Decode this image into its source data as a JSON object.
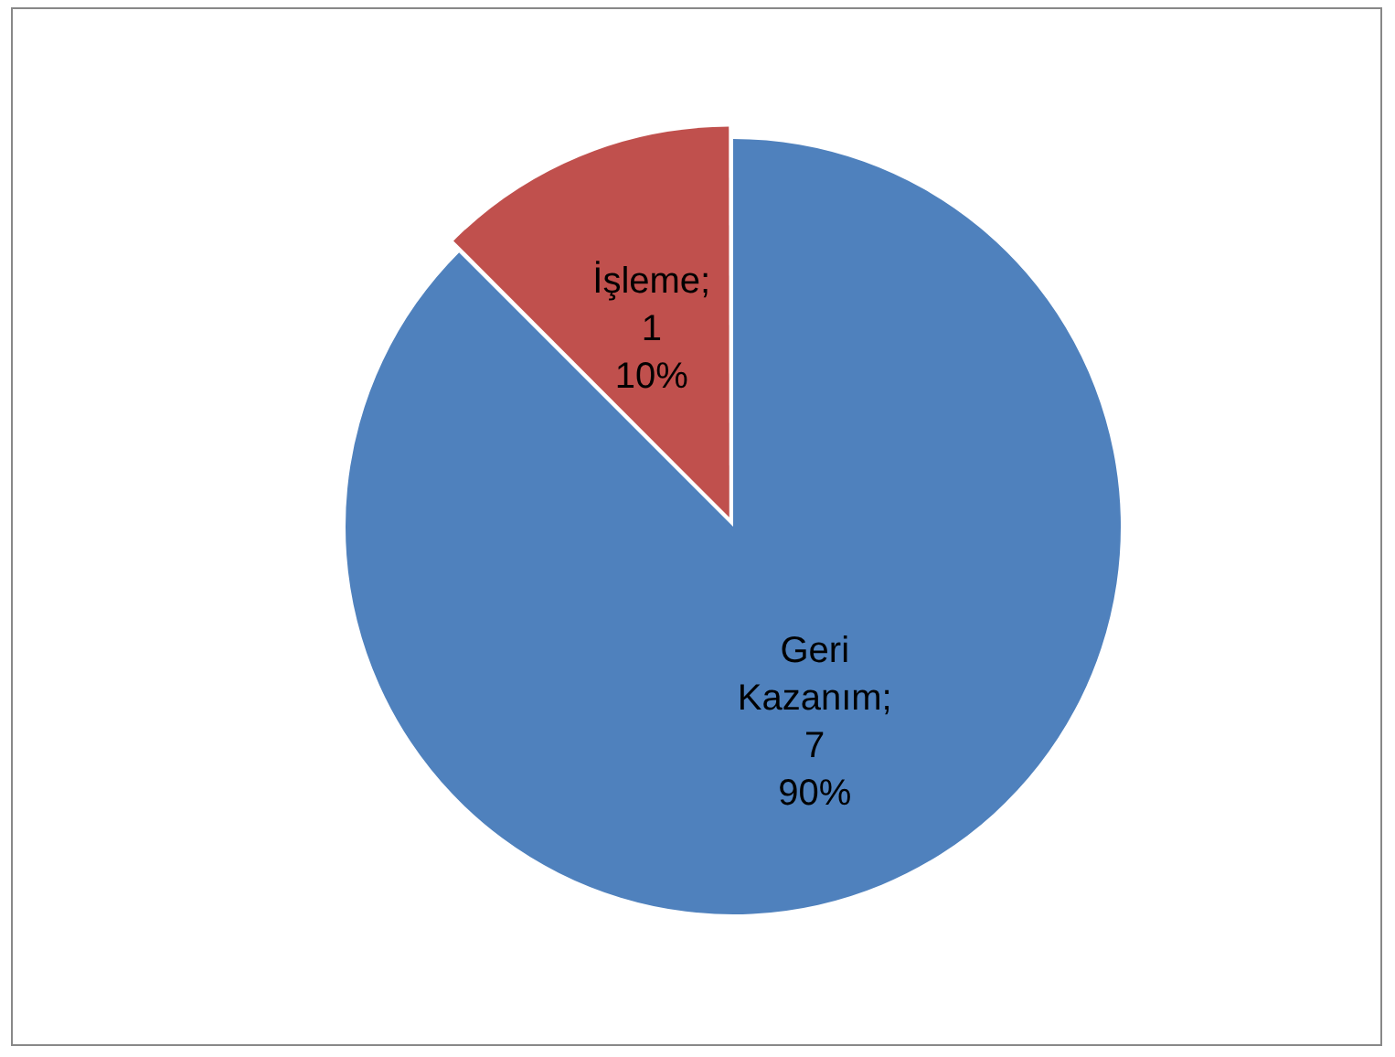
{
  "chart_data": {
    "type": "pie",
    "categories": [
      "Geri Kazanım",
      "İşleme"
    ],
    "values": [
      7,
      1
    ],
    "colors": [
      "#4f81bd",
      "#c0504d"
    ],
    "value_labels": [
      ";\n7\n90%",
      ";\n1\n10%"
    ],
    "legend": false
  }
}
